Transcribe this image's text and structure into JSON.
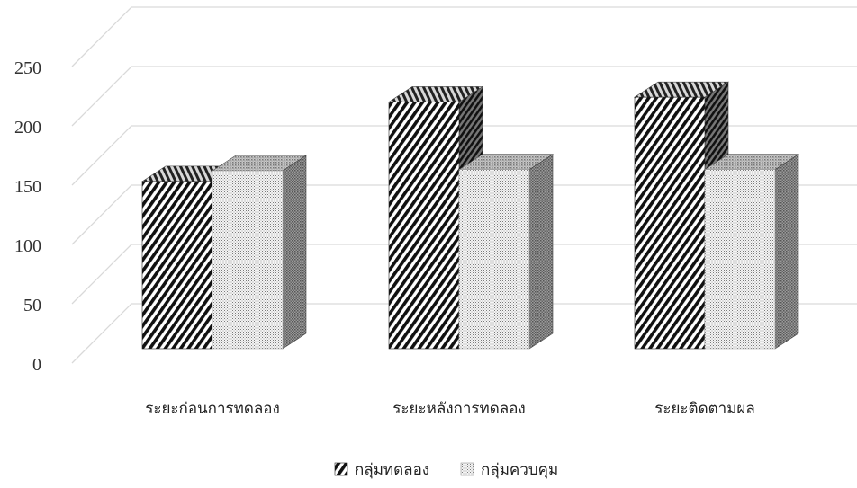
{
  "chart_data": {
    "type": "bar",
    "title": "",
    "xlabel": "",
    "ylabel": "",
    "categories": [
      "ระยะก่อนการทดลอง",
      "ระยะหลังการทดลอง",
      "ระยะติดตามผล"
    ],
    "series": [
      {
        "name": "กลุ่มทดลอง",
        "values": [
          141,
          208,
          212
        ],
        "pattern": "diagonal-stripes"
      },
      {
        "name": "กลุ่มควบคุม",
        "values": [
          150,
          151,
          151
        ],
        "pattern": "dotted"
      }
    ],
    "ylim": [
      0,
      250
    ],
    "yticks": [
      0,
      50,
      100,
      150,
      200,
      250
    ],
    "grid": true,
    "legend_position": "bottom",
    "style": "3d-column"
  }
}
